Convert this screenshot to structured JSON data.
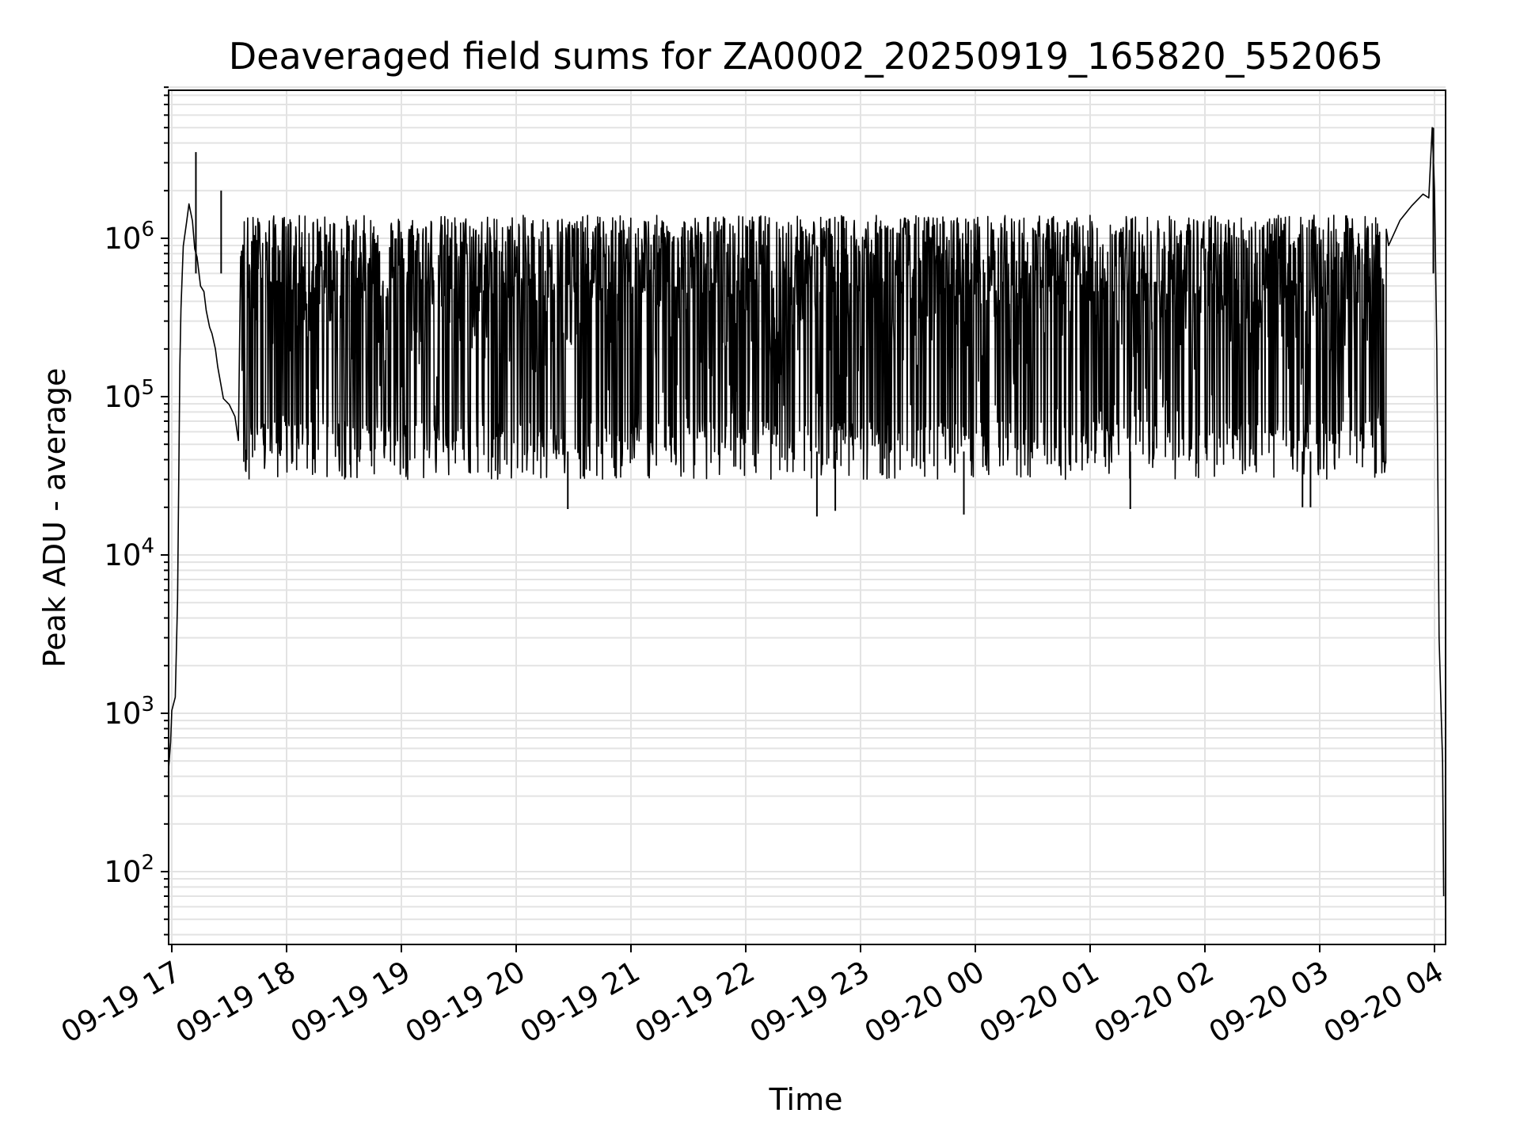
{
  "chart_data": {
    "type": "line",
    "title": "Deaveraged field sums for ZA0002_20250919_165820_552065",
    "xlabel": "Time",
    "ylabel": "Peak ADU - average",
    "yscale": "log",
    "ylim": [
      35,
      9000000
    ],
    "xlim_hours": [
      16.97,
      28.08
    ],
    "grid": true,
    "legend": "none",
    "line_color": "#000000",
    "x_ticks": [
      {
        "hour": 17,
        "label": "09-19 17"
      },
      {
        "hour": 18,
        "label": "09-19 18"
      },
      {
        "hour": 19,
        "label": "09-19 19"
      },
      {
        "hour": 20,
        "label": "09-19 20"
      },
      {
        "hour": 21,
        "label": "09-19 21"
      },
      {
        "hour": 22,
        "label": "09-19 22"
      },
      {
        "hour": 23,
        "label": "09-19 23"
      },
      {
        "hour": 24,
        "label": "09-20 00"
      },
      {
        "hour": 25,
        "label": "09-20 01"
      },
      {
        "hour": 26,
        "label": "09-20 02"
      },
      {
        "hour": 27,
        "label": "09-20 03"
      },
      {
        "hour": 28,
        "label": "09-20 04"
      }
    ],
    "y_ticks": [
      {
        "value": 100,
        "base": "10",
        "exp": "2"
      },
      {
        "value": 1000,
        "base": "10",
        "exp": "3"
      },
      {
        "value": 10000,
        "base": "10",
        "exp": "4"
      },
      {
        "value": 100000,
        "base": "10",
        "exp": "5"
      },
      {
        "value": 1000000,
        "base": "10",
        "exp": "6"
      }
    ],
    "series": [
      {
        "name": "Deaveraged field sum",
        "segments": [
          {
            "x": [
              16.97,
              16.99,
              17.0,
              17.03,
              17.05,
              17.07,
              17.08,
              17.1,
              17.13,
              17.15,
              17.18,
              17.2,
              17.22,
              17.25,
              17.28,
              17.3,
              17.33,
              17.35,
              17.38,
              17.4,
              17.45,
              17.5,
              17.55,
              17.58
            ],
            "y": [
              400,
              700,
              1000,
              1100,
              5000,
              150000,
              400000,
              800000,
              1200000,
              1500000,
              1200000,
              900000,
              700000,
              550000,
              450000,
              380000,
              300000,
              230000,
              180000,
              140000,
              110000,
              90000,
              70000,
              55000
            ]
          },
          {
            "x": [
              17.6,
              27.58
            ],
            "y_lo": 35000,
            "y_hi": 1300000,
            "trend": "dense oscillation between ~3e4 and ~1.3e6"
          },
          {
            "x": [
              27.6,
              27.7,
              27.8,
              27.9,
              27.95,
              27.98,
              28.0,
              28.02,
              28.04,
              28.06,
              28.07,
              28.08
            ],
            "y": [
              900000,
              1300000,
              1600000,
              1900000,
              1800000,
              5000000,
              2000000,
              200000,
              3000,
              900,
              500,
              70
            ]
          }
        ]
      }
    ],
    "spikes": [
      {
        "x": 17.21,
        "y": 3500000
      },
      {
        "x": 17.43,
        "y": 2000000
      },
      {
        "x": 27.99,
        "y": 5000000
      }
    ],
    "dips": [
      {
        "x": 20.45,
        "y": 19500
      },
      {
        "x": 22.62,
        "y": 17500
      },
      {
        "x": 22.78,
        "y": 19000
      },
      {
        "x": 23.9,
        "y": 18000
      },
      {
        "x": 25.35,
        "y": 19500
      },
      {
        "x": 26.85,
        "y": 20000
      },
      {
        "x": 26.92,
        "y": 20000
      }
    ]
  }
}
